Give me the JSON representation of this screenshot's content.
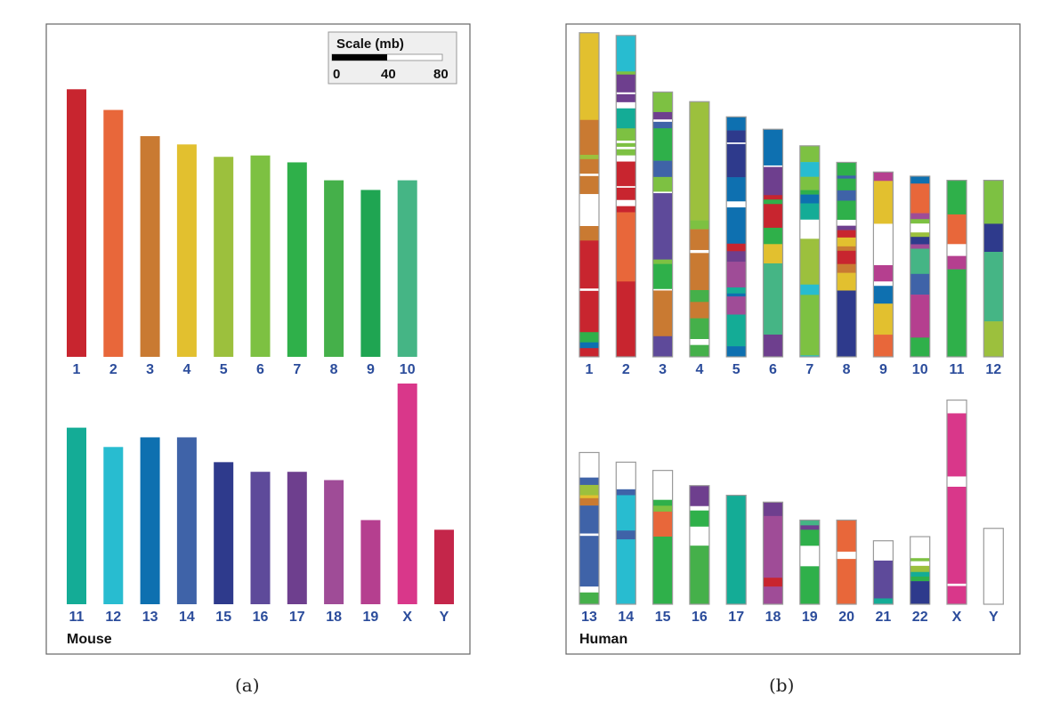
{
  "panels": [
    {
      "label": "(a)",
      "species": "Mouse"
    },
    {
      "label": "(b)",
      "species": "Human"
    }
  ],
  "scale": {
    "title": "Scale (mb)",
    "ticks": [
      "0",
      "40",
      "80"
    ],
    "max_mb": 80,
    "filled_mb": 40
  },
  "mouse_colors": {
    "1": "#c8252f",
    "2": "#e8673a",
    "3": "#c97a32",
    "4": "#e2c02f",
    "5": "#9cc03d",
    "6": "#7dc142",
    "7": "#2fb04a",
    "8": "#45b04a",
    "9": "#1fa552",
    "10": "#45b585",
    "11": "#14ac96",
    "12": "#28bcd0",
    "13": "#0e70b0",
    "14": "#3f63a8",
    "15": "#2e3a8c",
    "16": "#5e4a9a",
    "17": "#6e3f8e",
    "18": "#9f4c97",
    "19": "#b53f8f",
    "X": "#d9378a",
    "Y": "#c4264a",
    "": "#ffffff",
    "w": "#ffffff"
  },
  "chart_data": {
    "type": "chromosome-map",
    "mouse": [
      [
        {
          "chr": "1",
          "length_mb": 194
        },
        {
          "chr": "2",
          "length_mb": 179
        },
        {
          "chr": "3",
          "length_mb": 160
        },
        {
          "chr": "4",
          "length_mb": 154
        },
        {
          "chr": "5",
          "length_mb": 145
        },
        {
          "chr": "6",
          "length_mb": 146
        },
        {
          "chr": "7",
          "length_mb": 141
        },
        {
          "chr": "8",
          "length_mb": 128
        },
        {
          "chr": "9",
          "length_mb": 121
        },
        {
          "chr": "10",
          "length_mb": 128
        }
      ],
      [
        {
          "chr": "11",
          "length_mb": 128
        },
        {
          "chr": "12",
          "length_mb": 114
        },
        {
          "chr": "13",
          "length_mb": 121
        },
        {
          "chr": "14",
          "length_mb": 121
        },
        {
          "chr": "15",
          "length_mb": 103
        },
        {
          "chr": "16",
          "length_mb": 96
        },
        {
          "chr": "17",
          "length_mb": 96
        },
        {
          "chr": "18",
          "length_mb": 90
        },
        {
          "chr": "19",
          "length_mb": 61
        },
        {
          "chr": "X",
          "length_mb": 160
        },
        {
          "chr": "Y",
          "length_mb": 54
        }
      ]
    ],
    "human": [
      [
        {
          "chr": "1",
          "length_mb": 235,
          "segments": [
            [
              "4",
              300
            ],
            [
              "3",
              120
            ],
            [
              "5",
              15
            ],
            [
              "3",
              50
            ],
            [
              "w",
              8
            ],
            [
              "3",
              62
            ],
            [
              "",
              110
            ],
            [
              "3",
              50
            ],
            [
              "1",
              165
            ],
            [
              "w",
              8
            ],
            [
              "1",
              142
            ],
            [
              "7",
              35
            ],
            [
              "13",
              20
            ],
            [
              "1",
              30
            ]
          ]
        },
        {
          "chr": "2",
          "length_mb": 233,
          "segments": [
            [
              "12",
              117
            ],
            [
              "6",
              10
            ],
            [
              "17",
              58
            ],
            [
              "w",
              6
            ],
            [
              "17",
              26
            ],
            [
              "",
              20
            ],
            [
              "11",
              65
            ],
            [
              "6",
              40
            ],
            [
              "w",
              8
            ],
            [
              "6",
              12
            ],
            [
              "w",
              8
            ],
            [
              "6",
              20
            ],
            [
              "",
              20
            ],
            [
              "1",
              80
            ],
            [
              "w",
              5
            ],
            [
              "1",
              40
            ],
            [
              "",
              20
            ],
            [
              "1",
              20
            ],
            [
              "2",
              225
            ],
            [
              "1",
              245
            ]
          ]
        },
        {
          "chr": "3",
          "length_mb": 192,
          "segments": [
            [
              "6",
              68
            ],
            [
              "17",
              25
            ],
            [
              "w",
              8
            ],
            [
              "14",
              22
            ],
            [
              "7",
              110
            ],
            [
              "14",
              55
            ],
            [
              "6",
              50
            ],
            [
              "w",
              5
            ],
            [
              "16",
              225
            ],
            [
              "6",
              15
            ],
            [
              "7",
              85
            ],
            [
              "w",
              5
            ],
            [
              "3",
              155
            ],
            [
              "16",
              70
            ]
          ]
        },
        {
          "chr": "4",
          "length_mb": 185,
          "segments": [
            [
              "5",
              400
            ],
            [
              "6",
              30
            ],
            [
              "3",
              70
            ],
            [
              "w",
              10
            ],
            [
              "3",
              125
            ],
            [
              "8",
              40
            ],
            [
              "3",
              55
            ],
            [
              "8",
              70
            ],
            [
              "",
              20
            ],
            [
              "8",
              40
            ]
          ]
        },
        {
          "chr": "5",
          "length_mb": 174,
          "segments": [
            [
              "13",
              45
            ],
            [
              "15",
              40
            ],
            [
              "w",
              5
            ],
            [
              "15",
              110
            ],
            [
              "13",
              80
            ],
            [
              "",
              20
            ],
            [
              "13",
              120
            ],
            [
              "1",
              25
            ],
            [
              "17",
              35
            ],
            [
              "18",
              85
            ],
            [
              "11",
              20
            ],
            [
              "13",
              10
            ],
            [
              "18",
              60
            ],
            [
              "11",
              105
            ],
            [
              "13",
              35
            ]
          ]
        },
        {
          "chr": "6",
          "length_mb": 165,
          "segments": [
            [
              "13",
              122
            ],
            [
              "w",
              5
            ],
            [
              "17",
              95
            ],
            [
              "1",
              15
            ],
            [
              "7",
              15
            ],
            [
              "1",
              80
            ],
            [
              "7",
              55
            ],
            [
              "4",
              65
            ],
            [
              "10",
              240
            ],
            [
              "17",
              75
            ]
          ]
        },
        {
          "chr": "7",
          "length_mb": 153,
          "segments": [
            [
              "6",
              55
            ],
            [
              "12",
              50
            ],
            [
              "6",
              45
            ],
            [
              "7",
              15
            ],
            [
              "13",
              30
            ],
            [
              "11",
              55
            ],
            [
              "",
              65
            ],
            [
              "5",
              155
            ],
            [
              "12",
              35
            ],
            [
              "6",
              205
            ],
            [
              "12",
              5
            ]
          ]
        },
        {
          "chr": "8",
          "length_mb": 141,
          "segments": [
            [
              "7",
              45
            ],
            [
              "14",
              10
            ],
            [
              "7",
              40
            ],
            [
              "14",
              35
            ],
            [
              "7",
              65
            ],
            [
              "",
              20
            ],
            [
              "17",
              15
            ],
            [
              "1",
              25
            ],
            [
              "4",
              30
            ],
            [
              "3",
              15
            ],
            [
              "1",
              45
            ],
            [
              "3",
              30
            ],
            [
              "4",
              60
            ],
            [
              "15",
              225
            ]
          ]
        },
        {
          "chr": "9",
          "length_mb": 134,
          "segments": [
            [
              "19",
              30
            ],
            [
              "4",
              145
            ],
            [
              "",
              140
            ],
            [
              "19",
              55
            ],
            [
              "",
              15
            ],
            [
              "13",
              60
            ],
            [
              "4",
              105
            ],
            [
              "2",
              75
            ]
          ]
        },
        {
          "chr": "10",
          "length_mb": 131,
          "segments": [
            [
              "13",
              25
            ],
            [
              "2",
              100
            ],
            [
              "18",
              20
            ],
            [
              "6",
              15
            ],
            [
              "",
              30
            ],
            [
              "5",
              15
            ],
            [
              "15",
              25
            ],
            [
              "18",
              15
            ],
            [
              "10",
              85
            ],
            [
              "14",
              70
            ],
            [
              "19",
              145
            ],
            [
              "7",
              65
            ]
          ]
        },
        {
          "chr": "11",
          "length_mb": 128,
          "segments": [
            [
              "7",
              115
            ],
            [
              "2",
              100
            ],
            [
              "",
              40
            ],
            [
              "19",
              45
            ],
            [
              "7",
              295
            ]
          ]
        },
        {
          "chr": "12",
          "length_mb": 128,
          "segments": [
            [
              "6",
              147
            ],
            [
              "15",
              95
            ],
            [
              "10",
              235
            ],
            [
              "5",
              120
            ]
          ]
        }
      ],
      [
        {
          "chr": "13",
          "length_mb": 110,
          "segments": [
            [
              "",
              85
            ],
            [
              "14",
              25
            ],
            [
              "5",
              35
            ],
            [
              "4",
              10
            ],
            [
              "3",
              25
            ],
            [
              "14",
              95
            ],
            [
              "w",
              8
            ],
            [
              "14",
              172
            ],
            [
              "",
              20
            ],
            [
              "8",
              40
            ]
          ]
        },
        {
          "chr": "14",
          "length_mb": 103,
          "segments": [
            [
              "",
              92
            ],
            [
              "14",
              20
            ],
            [
              "12",
              120
            ],
            [
              "14",
              30
            ],
            [
              "12",
              220
            ]
          ]
        },
        {
          "chr": "15",
          "length_mb": 97,
          "segments": [
            [
              "",
              100
            ],
            [
              "7",
              20
            ],
            [
              "6",
              20
            ],
            [
              "2",
              85
            ],
            [
              "7",
              230
            ]
          ]
        },
        {
          "chr": "16",
          "length_mb": 86,
          "segments": [
            [
              "17",
              70
            ],
            [
              "",
              15
            ],
            [
              "7",
              55
            ],
            [
              "",
              65
            ],
            [
              "8",
              200
            ]
          ]
        },
        {
          "chr": "17",
          "length_mb": 79,
          "segments": [
            [
              "11",
              370
            ]
          ]
        },
        {
          "chr": "18",
          "length_mb": 74,
          "segments": [
            [
              "17",
              47
            ],
            [
              "18",
              210
            ],
            [
              "1",
              30
            ],
            [
              "18",
              60
            ]
          ]
        },
        {
          "chr": "19",
          "length_mb": 61,
          "segments": [
            [
              "10",
              18
            ],
            [
              "17",
              15
            ],
            [
              "7",
              55
            ],
            [
              "",
              70
            ],
            [
              "7",
              130
            ]
          ]
        },
        {
          "chr": "20",
          "length_mb": 61,
          "segments": [
            [
              "2",
              108
            ],
            [
              "",
              25
            ],
            [
              "2",
              155
            ]
          ]
        },
        {
          "chr": "21",
          "length_mb": 46,
          "segments": [
            [
              "",
              68
            ],
            [
              "16",
              130
            ],
            [
              "11",
              20
            ]
          ]
        },
        {
          "chr": "22",
          "length_mb": 49,
          "segments": [
            [
              "",
              70
            ],
            [
              "6",
              10
            ],
            [
              "",
              15
            ],
            [
              "5",
              20
            ],
            [
              "11",
              15
            ],
            [
              "7",
              15
            ],
            [
              "15",
              75
            ]
          ]
        },
        {
          "chr": "X",
          "length_mb": 148,
          "segments": [
            [
              "",
              45
            ],
            [
              "X",
              215
            ],
            [
              "",
              35
            ],
            [
              "X",
              330
            ],
            [
              "w",
              8
            ],
            [
              "X",
              62
            ]
          ]
        },
        {
          "chr": "Y",
          "length_mb": 55,
          "segments": [
            [
              "",
              260
            ]
          ]
        }
      ]
    ]
  }
}
